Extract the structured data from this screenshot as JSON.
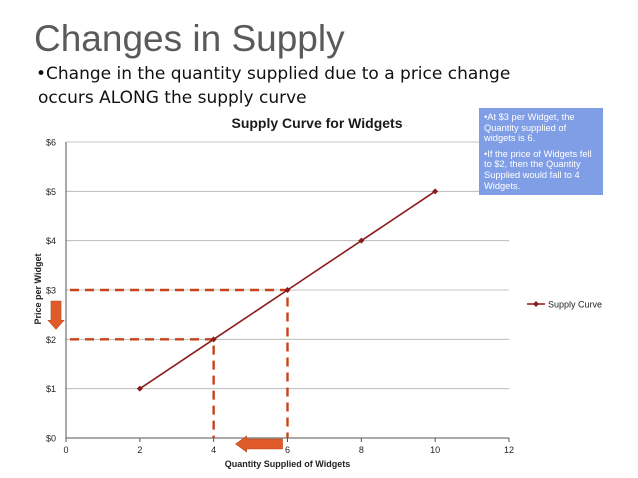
{
  "slide": {
    "title": "Changes in Supply",
    "bullet_line1": "•Change in the quantity supplied due to a price change",
    "bullet_line2": "occurs ALONG the supply curve"
  },
  "callout": {
    "line1": "•At $3 per Widget, the Quantity supplied of widgets is 6.",
    "line2": "•If the price of Widgets fell to $2, then the Quantity Supplied would fall to 4 Widgets."
  },
  "colors": {
    "curve": "#8b1a1a",
    "dashed": "#c8431d",
    "arrow": "#e05a2a",
    "gridline": "#b0b0b0",
    "callout_bg": "#7f9ee6"
  },
  "chart_data": {
    "type": "line",
    "title": "Supply Curve for Widgets",
    "xlabel": "Quantity Supplied of Widgets",
    "ylabel": "Price per Widget",
    "xlim": [
      0,
      12
    ],
    "ylim": [
      0,
      6
    ],
    "x_ticks": [
      0,
      2,
      4,
      6,
      8,
      10,
      12
    ],
    "x_tick_labels": [
      "0",
      "2",
      "4",
      "6",
      "8",
      "10",
      "12"
    ],
    "y_ticks": [
      0,
      1,
      2,
      3,
      4,
      5,
      6
    ],
    "y_tick_labels": [
      "$0",
      "$1",
      "$2",
      "$3",
      "$4",
      "$5",
      "$6"
    ],
    "grid": "horizontal",
    "legend": "right",
    "series": [
      {
        "name": "Supply Curve",
        "x": [
          2,
          4,
          6,
          8,
          10
        ],
        "y": [
          1,
          2,
          3,
          4,
          5
        ]
      }
    ],
    "annotations": [
      {
        "type": "dashed-guide",
        "x": 6,
        "y": 3
      },
      {
        "type": "dashed-guide",
        "x": 4,
        "y": 2
      },
      {
        "type": "arrow",
        "direction": "down",
        "axis": "y",
        "from": 3,
        "to": 2
      },
      {
        "type": "arrow",
        "direction": "left",
        "axis": "x",
        "from": 6,
        "to": 4
      }
    ]
  }
}
